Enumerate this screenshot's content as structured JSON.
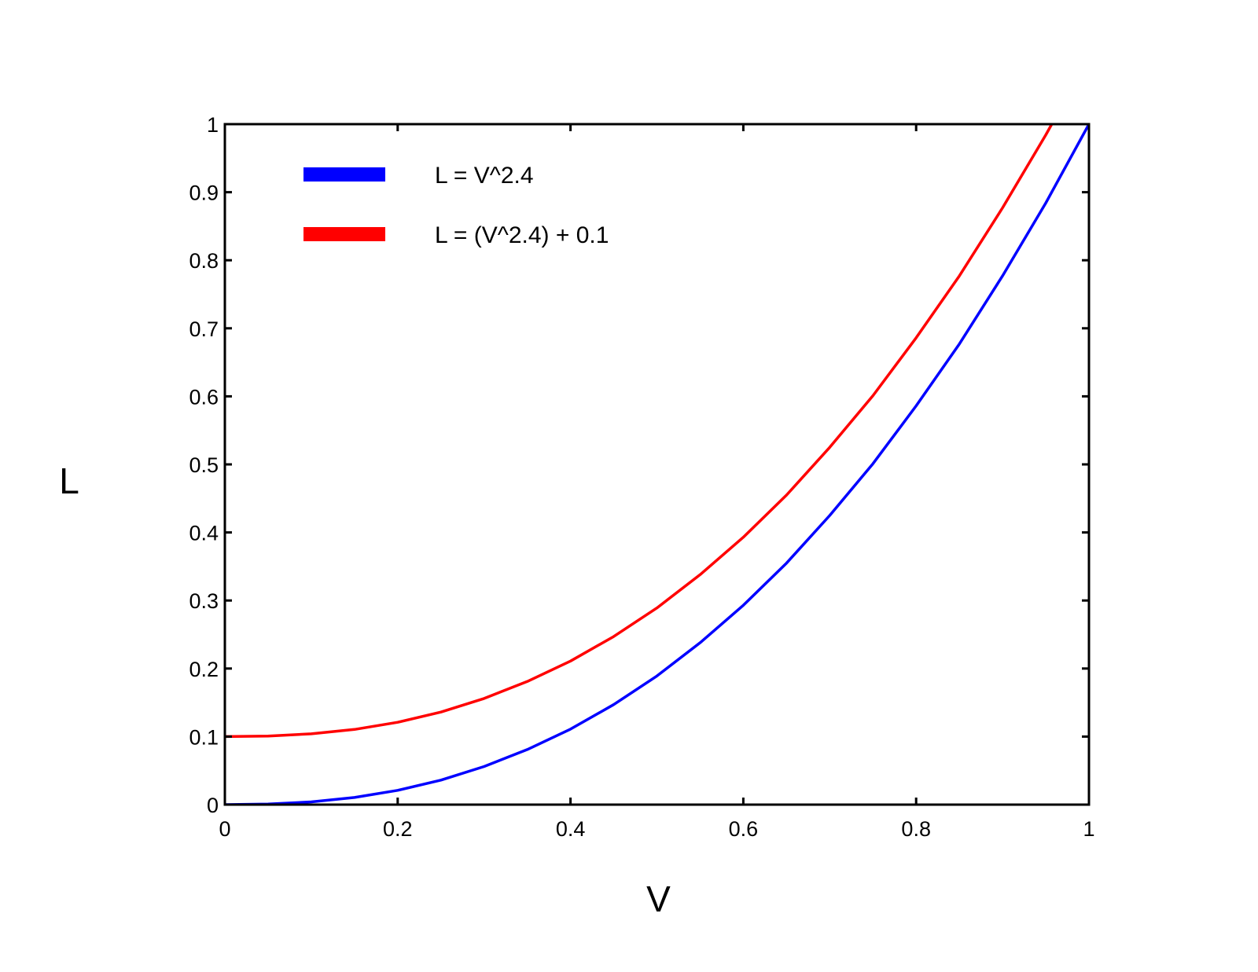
{
  "chart_data": {
    "type": "line",
    "xlabel": "V",
    "ylabel": "L",
    "xlim": [
      0,
      1
    ],
    "ylim": [
      0,
      1
    ],
    "x_ticks": [
      0,
      0.2,
      0.4,
      0.6,
      0.8,
      1
    ],
    "x_tick_labels": [
      "0",
      "0.2",
      "0.4",
      "0.6",
      "0.8",
      "1"
    ],
    "y_ticks": [
      0,
      0.1,
      0.2,
      0.3,
      0.4,
      0.5,
      0.6,
      0.7,
      0.8,
      0.9,
      1
    ],
    "y_tick_labels": [
      "0",
      "0.1",
      "0.2",
      "0.3",
      "0.4",
      "0.5",
      "0.6",
      "0.7",
      "0.8",
      "0.9",
      "1"
    ],
    "grid": false,
    "legend_position": "top-left",
    "series": [
      {
        "name": "L = V^2.4",
        "color": "#0000ff",
        "x": [
          0,
          0.05,
          0.1,
          0.15,
          0.2,
          0.25,
          0.3,
          0.35,
          0.4,
          0.45,
          0.5,
          0.55,
          0.6,
          0.65,
          0.7,
          0.75,
          0.8,
          0.85,
          0.9,
          0.95,
          1.0
        ],
        "y": [
          0,
          0.0008,
          0.004,
          0.0105,
          0.021,
          0.036,
          0.056,
          0.081,
          0.111,
          0.147,
          0.189,
          0.238,
          0.293,
          0.355,
          0.425,
          0.501,
          0.586,
          0.677,
          0.777,
          0.884,
          1.0
        ]
      },
      {
        "name": "L = (V^2.4) + 0.1",
        "color": "#ff0000",
        "x": [
          0,
          0.05,
          0.1,
          0.15,
          0.2,
          0.25,
          0.3,
          0.35,
          0.4,
          0.45,
          0.5,
          0.55,
          0.6,
          0.65,
          0.7,
          0.75,
          0.8,
          0.85,
          0.9,
          0.95,
          0.957
        ],
        "y": [
          0.1,
          0.1008,
          0.104,
          0.1105,
          0.121,
          0.136,
          0.156,
          0.181,
          0.211,
          0.247,
          0.289,
          0.338,
          0.393,
          0.455,
          0.525,
          0.601,
          0.686,
          0.777,
          0.877,
          0.984,
          1.0
        ]
      }
    ]
  }
}
